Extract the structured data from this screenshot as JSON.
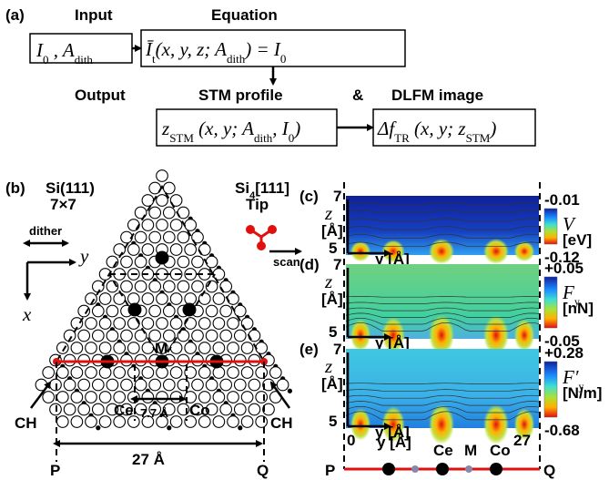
{
  "panel_a": {
    "label": "(a)",
    "input_title": "Input",
    "equation_title": "Equation",
    "output_title": "Output",
    "stm_title": "STM profile",
    "ampersand": "&",
    "dlfm_title": "DLFM image",
    "input_formula": [
      "I",
      {
        "sub": "0"
      },
      " , A",
      {
        "sub": "dith"
      }
    ],
    "equation_formula": [
      "Ī",
      {
        "sub": "t"
      },
      "(x, y, z; A",
      {
        "sub": "dith"
      },
      ") = I",
      {
        "sub": "0"
      }
    ],
    "stm_formula": [
      "z",
      {
        "sub": "STM"
      },
      " (x, y; A",
      {
        "sub": "dith"
      },
      ", I",
      {
        "sub": "0"
      },
      ")"
    ],
    "dlfm_formula": [
      "Δf",
      {
        "sub": "TR"
      },
      " (x, y; z",
      {
        "sub": "STM"
      },
      ")"
    ]
  },
  "panel_b": {
    "label": "(b)",
    "surface": "Si(111)",
    "reconstruction": "7×7",
    "tip": [
      "Si",
      {
        "sub": "4"
      },
      "[111]"
    ],
    "tip_word": "Tip",
    "dither": "dither",
    "y_axis": "y",
    "x_axis": "x",
    "scan": "scan",
    "m_label": "M",
    "ch_left": "CH",
    "ch_right": "CH",
    "ce_label": "Ce",
    "co_label": "Co",
    "spacing": "7.7 Å",
    "p_label": "P",
    "q_label": "Q",
    "width": "27 Å"
  },
  "maps": [
    {
      "label": "(c)",
      "z_top": 7,
      "z_bottom": 5,
      "z_symbol": "z",
      "z_unit": "[Å]",
      "x_label": "y [Å]",
      "cb_top": -0.01,
      "cb_bottom": -0.12,
      "quantity": [
        "V"
      ],
      "unit": "[eV]"
    },
    {
      "label": "(d)",
      "z_top": 7,
      "z_bottom": 5,
      "z_symbol": "z",
      "z_unit": "[Å]",
      "x_label": "y [Å]",
      "cb_top": {
        "value": 0.05,
        "label": "+0.05"
      },
      "cb_bottom": -0.05,
      "quantity": [
        "F",
        {
          "sub": "y"
        }
      ],
      "unit": "[nN]"
    },
    {
      "label": "(e)",
      "z_top": 7,
      "z_bottom": 5,
      "z_symbol": "z",
      "z_unit": "[Å]",
      "x_label": "y [Å]",
      "cb_top": {
        "value": 0.28,
        "label": "+0.28"
      },
      "cb_bottom": -0.68,
      "quantity": [
        "F′",
        {
          "sub": "y"
        }
      ],
      "unit": "[N/m]"
    }
  ],
  "bottom_axis": {
    "start": 0,
    "end": 27,
    "x_label": "y [Å]",
    "ce": "Ce",
    "m": "M",
    "co": "Co",
    "p": "P",
    "q": "Q"
  }
}
